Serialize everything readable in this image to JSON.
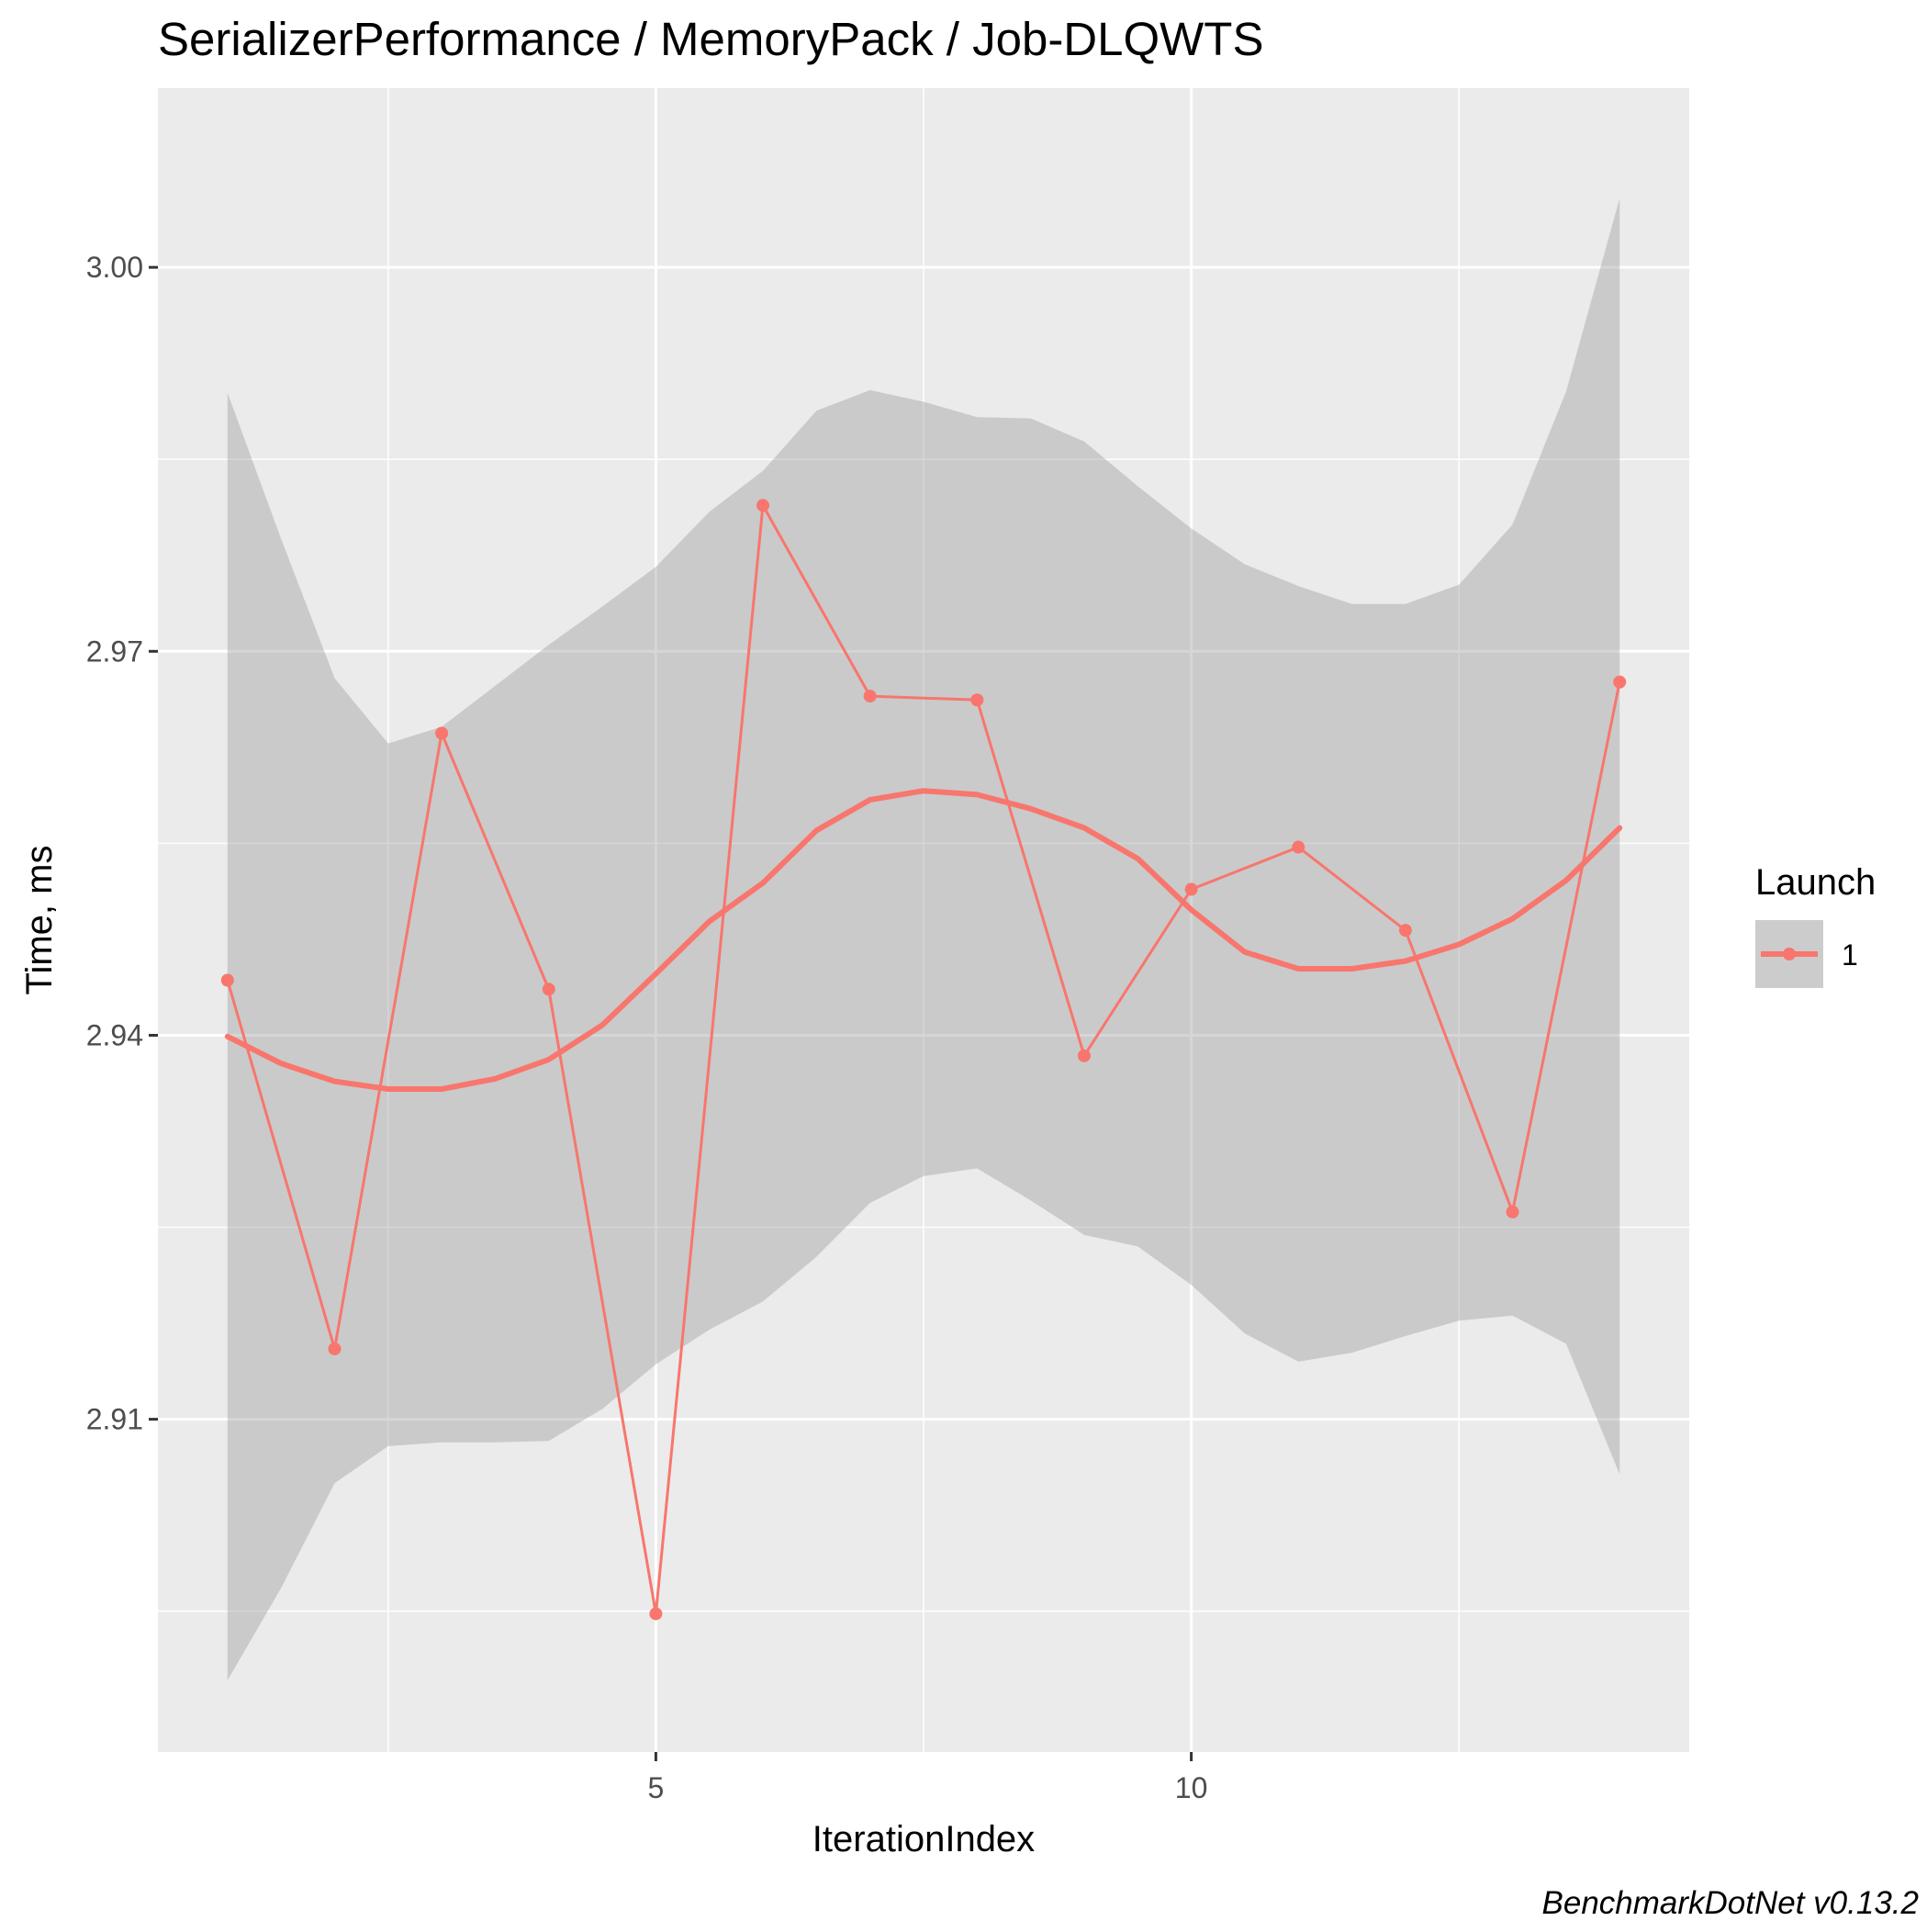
{
  "chart_data": {
    "type": "line",
    "title": "SerializerPerformance / MemoryPack / Job-DLQWTS",
    "xlabel": "IterationIndex",
    "ylabel": "Time, ms",
    "caption": "BenchmarkDotNet v0.13.2",
    "xlim": [
      0.35,
      14.65
    ],
    "ylim": [
      2.884,
      3.014
    ],
    "x_ticks": [
      5,
      10
    ],
    "x_tick_labels": [
      "5",
      "10"
    ],
    "x_minor_ticks": [
      2.5,
      7.5,
      12.5
    ],
    "y_ticks": [
      2.91,
      2.94,
      2.97,
      3.0
    ],
    "y_tick_labels": [
      "2.91",
      "2.94",
      "2.97",
      "3.00"
    ],
    "y_minor_ticks": [
      2.895,
      2.925,
      2.955,
      2.985
    ],
    "grid": true,
    "legend": {
      "title": "Launch",
      "entries": [
        "1"
      ],
      "position": "right"
    },
    "colors": {
      "series": "#f8766d",
      "band": "#999999",
      "panel": "#ebebeb",
      "grid": "#ffffff"
    },
    "series": [
      {
        "name": "1",
        "x": [
          1,
          2,
          3,
          4,
          5,
          6,
          7,
          8,
          9,
          10,
          11,
          12,
          13,
          14
        ],
        "values": [
          2.9443,
          2.9155,
          2.9636,
          2.9436,
          2.8948,
          2.9814,
          2.9665,
          2.9662,
          2.9384,
          2.9514,
          2.9547,
          2.9482,
          2.9262,
          2.9676
        ]
      }
    ],
    "smooth": {
      "x": [
        1,
        1.5,
        2,
        2.5,
        3,
        3.5,
        4,
        4.5,
        5,
        5.5,
        6,
        6.5,
        7,
        7.5,
        8,
        8.5,
        9,
        9.5,
        10,
        10.5,
        11,
        11.5,
        12,
        12.5,
        13,
        13.5,
        14
      ],
      "y": [
        2.9399,
        2.9378,
        2.9364,
        2.9358,
        2.9358,
        2.9366,
        2.9381,
        2.9408,
        2.9448,
        2.9489,
        2.9519,
        2.956,
        2.9584,
        2.9591,
        2.9588,
        2.9577,
        2.9562,
        2.9538,
        2.9498,
        2.9465,
        2.9452,
        2.9452,
        2.9458,
        2.9471,
        2.9491,
        2.9521,
        2.9562
      ],
      "upper": [
        2.9902,
        2.9788,
        2.9679,
        2.9628,
        2.9641,
        2.9673,
        2.9705,
        2.9735,
        2.9766,
        2.9809,
        2.9841,
        2.9888,
        2.9904,
        2.9895,
        2.9883,
        2.9882,
        2.9864,
        2.9829,
        2.9796,
        2.9768,
        2.9751,
        2.9737,
        2.9737,
        2.9752,
        2.9799,
        2.9903,
        3.0054
      ],
      "lower": [
        2.8896,
        2.8968,
        2.905,
        2.9079,
        2.9082,
        2.9082,
        2.9083,
        2.9108,
        2.9143,
        2.917,
        2.9192,
        2.9227,
        2.9269,
        2.929,
        2.9296,
        2.9271,
        2.9244,
        2.9235,
        2.9205,
        2.9167,
        2.9145,
        2.9152,
        2.9165,
        2.9177,
        2.9181,
        2.9159,
        2.9057
      ]
    }
  }
}
